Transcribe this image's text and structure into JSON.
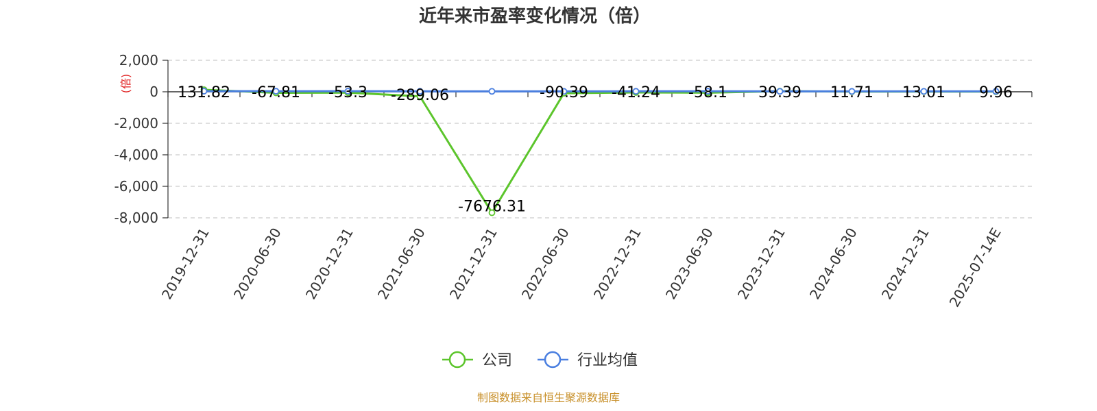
{
  "chart_data": {
    "type": "line",
    "title": "近年来市盈率变化情况（倍）",
    "unit_label": "(倍)",
    "categories": [
      "2019-12-31",
      "2020-06-30",
      "2020-12-31",
      "2021-06-30",
      "2021-12-31",
      "2022-06-30",
      "2022-12-31",
      "2023-06-30",
      "2023-12-31",
      "2024-06-30",
      "2024-12-31",
      "2025-07-14E"
    ],
    "ylim": [
      -8000,
      2000
    ],
    "yticks": [
      2000,
      0,
      -2000,
      -4000,
      -6000,
      -8000
    ],
    "ytick_labels": [
      "2,000",
      "0",
      "-2,000",
      "-4,000",
      "-6,000",
      "-8,000"
    ],
    "grid": true,
    "legend_position": "bottom",
    "series": [
      {
        "name": "公司",
        "color": "#5cc52c",
        "values": [
          131.82,
          -67.81,
          -53.3,
          -289.06,
          -7676.31,
          -90.39,
          -41.24,
          -58.1,
          39.39,
          11.71,
          13.01,
          9.96
        ],
        "labels": [
          "131.82",
          "-67.81",
          "-53.3",
          "-289.06",
          "-7676.31",
          "-90.39",
          "-41.24",
          "-58.1",
          "39.39",
          "11.71",
          "13.01",
          "9.96"
        ]
      },
      {
        "name": "行业均值",
        "color": "#4a7fe0",
        "values": [
          40,
          35,
          38,
          30,
          28,
          25,
          30,
          32,
          28,
          25,
          26,
          28
        ]
      }
    ]
  },
  "source": "制图数据来自恒生聚源数据库"
}
